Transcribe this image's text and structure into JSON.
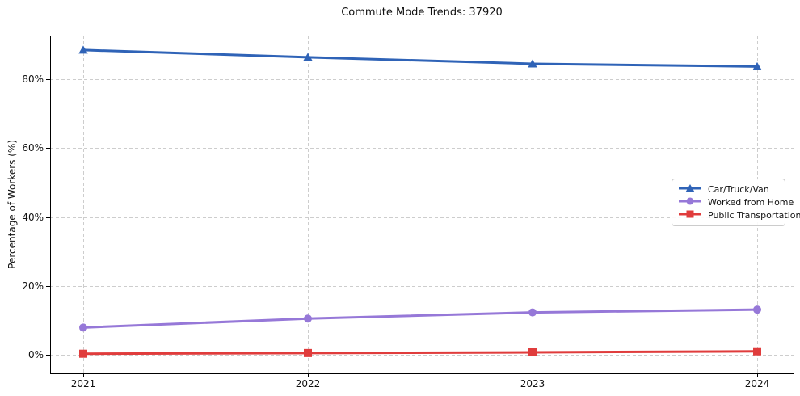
{
  "chart_data": {
    "type": "line",
    "title": "Commute Mode Trends: 37920",
    "xlabel": "",
    "ylabel": "Percentage of Workers (%)",
    "categories": [
      "2021",
      "2022",
      "2023",
      "2024"
    ],
    "series": [
      {
        "name": "Car/Truck/Van",
        "marker": "triangle",
        "color": "#2f63b7",
        "values": [
          88.5,
          86.4,
          84.5,
          83.7
        ]
      },
      {
        "name": "Worked from Home",
        "marker": "circle",
        "color": "#9678d8",
        "values": [
          7.9,
          10.5,
          12.3,
          13.1
        ]
      },
      {
        "name": "Public Transportation",
        "marker": "square",
        "color": "#e03c3c",
        "values": [
          0.3,
          0.5,
          0.7,
          1.0
        ]
      }
    ],
    "y_ticks": [
      0,
      20,
      40,
      60,
      80
    ],
    "y_tick_labels": [
      "0%",
      "20%",
      "40%",
      "60%",
      "80%"
    ],
    "ylim": [
      -5.4,
      92.7
    ],
    "grid": true,
    "grid_style": "dashed",
    "legend_position": "center right"
  },
  "colors": {
    "grid": "#cdcdcd",
    "spine": "#000000",
    "text": "#1a1a1a",
    "background": "#ffffff"
  }
}
